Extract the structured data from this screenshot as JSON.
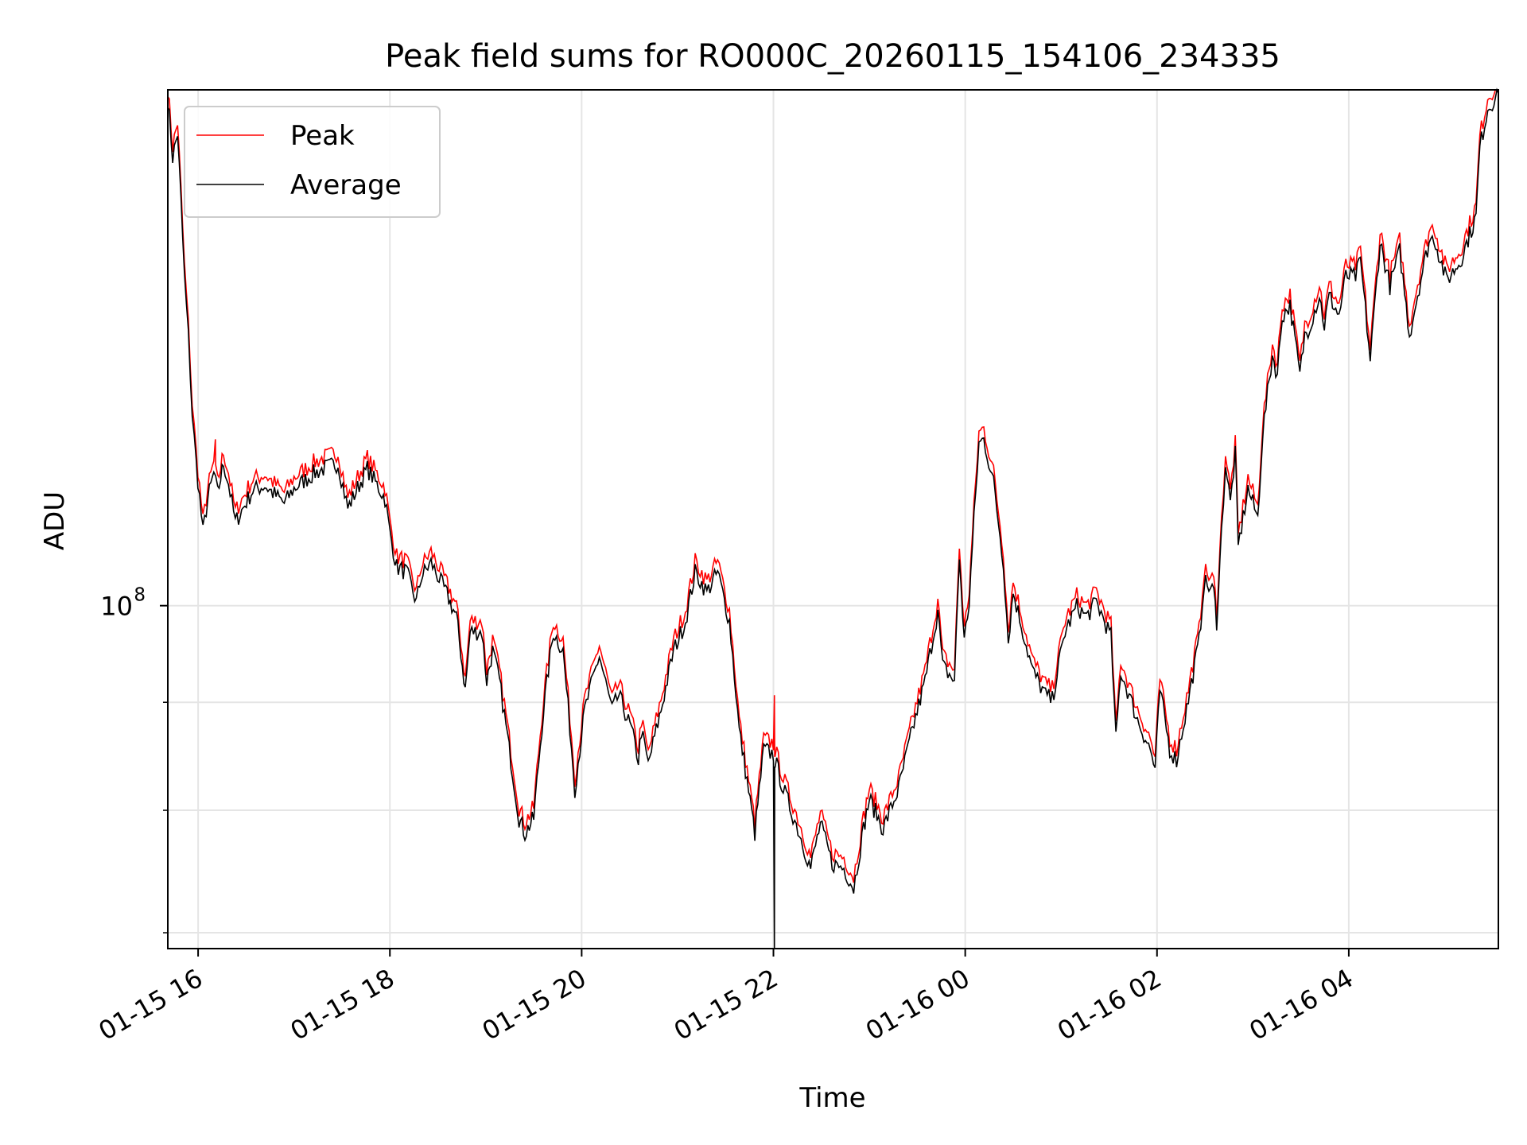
{
  "chart_data": {
    "type": "line",
    "title": "Peak field sums for RO000C_20260115_154106_234335",
    "xlabel": "Time",
    "ylabel": "ADU",
    "yscale": "log",
    "ylim": [
      68800000,
      175500000
    ],
    "xlim_hours_from_0115_0000": [
      15.684,
      29.56
    ],
    "x_ticks": [
      {
        "hour": 16,
        "label": "01-15 16"
      },
      {
        "hour": 18,
        "label": "01-15 18"
      },
      {
        "hour": 20,
        "label": "01-15 20"
      },
      {
        "hour": 22,
        "label": "01-15 22"
      },
      {
        "hour": 24,
        "label": "01-16 00"
      },
      {
        "hour": 26,
        "label": "01-16 02"
      },
      {
        "hour": 28,
        "label": "01-16 04"
      }
    ],
    "y_major_ticks": [
      {
        "value": 100000000,
        "base": "10",
        "exp": "8"
      }
    ],
    "y_minor_ticks": [
      70000000,
      80000000,
      90000000
    ],
    "grid": true,
    "legend": {
      "placement": "top-left",
      "entries": [
        {
          "label": "Peak",
          "color": "#ff0000"
        },
        {
          "label": "Average",
          "color": "#000000"
        }
      ]
    },
    "value_unit_multiplier": 1000000,
    "average_points": [
      [
        15.684,
        173.9
      ],
      [
        15.735,
        163.0
      ],
      [
        15.786,
        167.4
      ],
      [
        15.857,
        143.2
      ],
      [
        15.898,
        134.3
      ],
      [
        15.939,
        123.2
      ],
      [
        15.98,
        116.8
      ],
      [
        16.051,
        108.3
      ],
      [
        16.102,
        112.4
      ],
      [
        16.163,
        115.5
      ],
      [
        16.204,
        113.0
      ],
      [
        16.265,
        116.8
      ],
      [
        16.316,
        114.3
      ],
      [
        16.388,
        109.5
      ],
      [
        16.571,
        113.4
      ],
      [
        16.694,
        114.0
      ],
      [
        16.898,
        111.8
      ],
      [
        17.0,
        113.6
      ],
      [
        17.204,
        115.5
      ],
      [
        17.306,
        116.1
      ],
      [
        17.459,
        116.8
      ],
      [
        17.561,
        111.2
      ],
      [
        17.765,
        116.1
      ],
      [
        17.949,
        112.4
      ],
      [
        18.0,
        108.3
      ],
      [
        18.071,
        104.3
      ],
      [
        18.173,
        103.7
      ],
      [
        18.276,
        100.4
      ],
      [
        18.327,
        103.2
      ],
      [
        18.429,
        104.8
      ],
      [
        18.582,
        101.5
      ],
      [
        18.694,
        98.8
      ],
      [
        18.786,
        91.2
      ],
      [
        18.837,
        97.2
      ],
      [
        18.959,
        97.2
      ],
      [
        19.01,
        92.1
      ],
      [
        19.071,
        95.2
      ],
      [
        19.143,
        92.1
      ],
      [
        19.245,
        85.5
      ],
      [
        19.347,
        79.3
      ],
      [
        19.408,
        78.0
      ],
      [
        19.5,
        79.3
      ],
      [
        19.602,
        89.2
      ],
      [
        19.704,
        97.2
      ],
      [
        19.806,
        95.2
      ],
      [
        19.929,
        81.9
      ],
      [
        20.031,
        89.2
      ],
      [
        20.184,
        94.7
      ],
      [
        20.316,
        89.2
      ],
      [
        20.388,
        90.7
      ],
      [
        20.52,
        87.3
      ],
      [
        20.592,
        84.5
      ],
      [
        20.622,
        87.3
      ],
      [
        20.694,
        84.1
      ],
      [
        20.827,
        89.2
      ],
      [
        20.959,
        95.2
      ],
      [
        21.082,
        98.3
      ],
      [
        21.184,
        103.7
      ],
      [
        21.306,
        101.5
      ],
      [
        21.418,
        103.7
      ],
      [
        21.541,
        98.3
      ],
      [
        21.643,
        87.3
      ],
      [
        21.806,
        78.0
      ],
      [
        21.898,
        85.5
      ],
      [
        22.0,
        85.0
      ],
      [
        22.102,
        81.9
      ],
      [
        22.255,
        78.4
      ],
      [
        22.388,
        75.1
      ],
      [
        22.49,
        78.8
      ],
      [
        22.612,
        75.5
      ],
      [
        22.735,
        75.1
      ],
      [
        22.837,
        73.5
      ],
      [
        22.939,
        78.4
      ],
      [
        23.0,
        81.0
      ],
      [
        23.143,
        78.4
      ],
      [
        23.306,
        81.9
      ],
      [
        23.449,
        87.3
      ],
      [
        23.582,
        92.1
      ],
      [
        23.714,
        99.4
      ],
      [
        23.765,
        93.6
      ],
      [
        23.888,
        92.1
      ],
      [
        23.939,
        105.4
      ],
      [
        23.99,
        96.2
      ],
      [
        24.041,
        100.4
      ],
      [
        24.143,
        119.3
      ],
      [
        24.194,
        119.9
      ],
      [
        24.296,
        114.3
      ],
      [
        24.398,
        104.8
      ],
      [
        24.449,
        96.2
      ],
      [
        24.5,
        101.5
      ],
      [
        24.602,
        97.2
      ],
      [
        24.704,
        93.1
      ],
      [
        24.837,
        90.7
      ],
      [
        24.908,
        90.2
      ],
      [
        25.041,
        97.2
      ],
      [
        25.163,
        99.9
      ],
      [
        25.265,
        98.8
      ],
      [
        25.367,
        100.4
      ],
      [
        25.52,
        96.7
      ],
      [
        25.571,
        86.4
      ],
      [
        25.622,
        93.1
      ],
      [
        25.796,
        88.3
      ],
      [
        25.929,
        85.5
      ],
      [
        25.98,
        83.6
      ],
      [
        26.031,
        91.2
      ],
      [
        26.133,
        85.5
      ],
      [
        26.204,
        84.5
      ],
      [
        26.327,
        90.2
      ],
      [
        26.439,
        96.2
      ],
      [
        26.49,
        102.6
      ],
      [
        26.592,
        101.5
      ],
      [
        26.622,
        98.3
      ],
      [
        26.673,
        108.3
      ],
      [
        26.714,
        116.8
      ],
      [
        26.765,
        111.8
      ],
      [
        26.816,
        118.0
      ],
      [
        26.847,
        106.6
      ],
      [
        26.949,
        113.6
      ],
      [
        27.051,
        110.0
      ],
      [
        27.102,
        120.6
      ],
      [
        27.204,
        131.4
      ],
      [
        27.255,
        128.6
      ],
      [
        27.306,
        137.2
      ],
      [
        27.388,
        138.7
      ],
      [
        27.49,
        128.6
      ],
      [
        27.541,
        134.3
      ],
      [
        27.592,
        135.7
      ],
      [
        27.694,
        140.2
      ],
      [
        27.745,
        135.7
      ],
      [
        27.796,
        140.2
      ],
      [
        27.898,
        137.2
      ],
      [
        27.969,
        143.2
      ],
      [
        28.071,
        143.2
      ],
      [
        28.122,
        145.6
      ],
      [
        28.224,
        130.7
      ],
      [
        28.327,
        148.7
      ],
      [
        28.429,
        141.7
      ],
      [
        28.531,
        147.2
      ],
      [
        28.633,
        134.3
      ],
      [
        28.735,
        141.7
      ],
      [
        28.837,
        148.7
      ],
      [
        28.888,
        149.5
      ],
      [
        29.02,
        142.5
      ],
      [
        29.163,
        145.6
      ],
      [
        29.327,
        152.8
      ],
      [
        29.367,
        164.8
      ],
      [
        29.449,
        172.0
      ],
      [
        29.561,
        174.8
      ]
    ],
    "peak_to_average_ratio": 1.012,
    "peak_spikes": [
      [
        16.18,
        119.9
      ],
      [
        22.01,
        90.7
      ]
    ],
    "average_dropouts": [
      [
        22.01,
        65.0
      ]
    ]
  }
}
